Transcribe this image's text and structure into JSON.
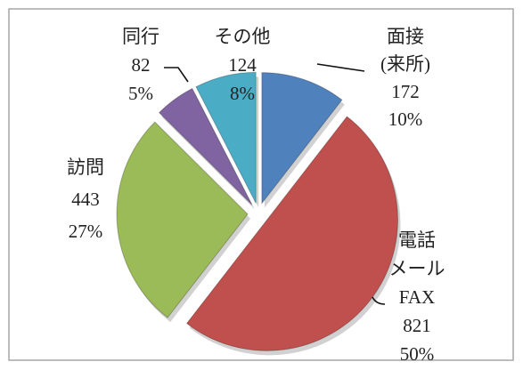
{
  "chart_data": {
    "type": "pie",
    "categories": [
      "面接\n(来所)",
      "電話\nメール\nFAX",
      "訪問",
      "同行",
      "その他"
    ],
    "values": [
      172,
      821,
      443,
      82,
      124
    ],
    "percent_labels": [
      "10%",
      "50%",
      "27%",
      "5%",
      "8%"
    ],
    "colors": [
      "#4f81bd",
      "#c0504d",
      "#9bbb59",
      "#8064a2",
      "#4bacc6"
    ],
    "start_angle": 0,
    "direction": "clockwise"
  }
}
